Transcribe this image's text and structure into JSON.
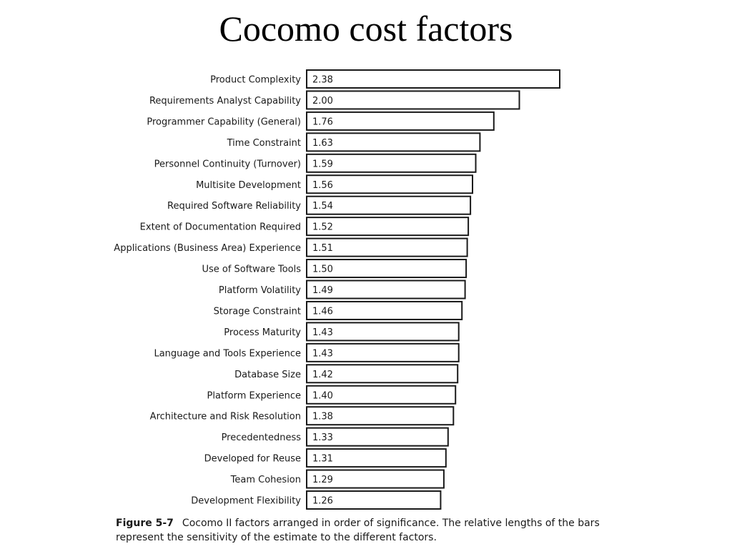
{
  "slide": {
    "title": "Cocomo cost factors"
  },
  "caption": {
    "figure_number": "Figure 5-7",
    "text": "Cocomo II factors arranged in order of significance. The relative lengths of the bars represent the sensitivity of the estimate to the different factors."
  },
  "chart_data": {
    "type": "bar",
    "orientation": "horizontal",
    "title": "",
    "xlabel": "",
    "ylabel": "",
    "grid": false,
    "legend": "none",
    "categories": [
      "Product Complexity",
      "Requirements Analyst Capability",
      "Programmer Capability (General)",
      "Time Constraint",
      "Personnel Continuity (Turnover)",
      "Multisite Development",
      "Required Software Reliability",
      "Extent of Documentation Required",
      "Applications (Business Area) Experience",
      "Use of Software Tools",
      "Platform Volatility",
      "Storage Constraint",
      "Process Maturity",
      "Language and Tools Experience",
      "Database Size",
      "Platform Experience",
      "Architecture and Risk Resolution",
      "Precedentedness",
      "Developed for Reuse",
      "Team Cohesion",
      "Development Flexibility"
    ],
    "values": [
      2.38,
      2.0,
      1.76,
      1.63,
      1.59,
      1.56,
      1.54,
      1.52,
      1.51,
      1.5,
      1.49,
      1.46,
      1.43,
      1.43,
      1.42,
      1.4,
      1.38,
      1.33,
      1.31,
      1.29,
      1.26
    ],
    "value_labels": [
      "2.38",
      "2.00",
      "1.76",
      "1.63",
      "1.59",
      "1.56",
      "1.54",
      "1.52",
      "1.51",
      "1.50",
      "1.49",
      "1.46",
      "1.43",
      "1.43",
      "1.42",
      "1.40",
      "1.38",
      "1.33",
      "1.31",
      "1.29",
      "1.26"
    ],
    "bar_fill": "#ffffff",
    "bar_stroke": "#1a1a1a"
  }
}
